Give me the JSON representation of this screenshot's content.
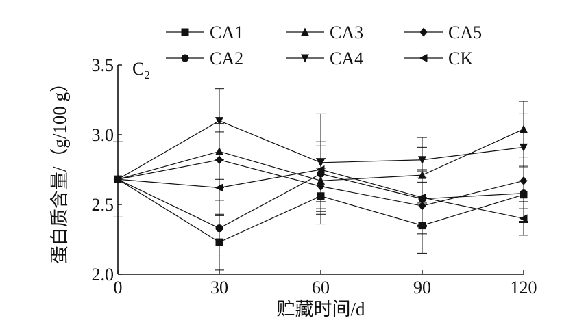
{
  "chart_data": {
    "type": "line",
    "panel_label": "C",
    "panel_label_sub": "2",
    "xlabel": "贮藏时间/d",
    "ylabel": "蛋白质含量/（g/100 g）",
    "x": [
      0,
      30,
      60,
      90,
      120
    ],
    "x_ticks": [
      "0",
      "30",
      "60",
      "90",
      "120"
    ],
    "y_ticks": [
      "2.0",
      "2.5",
      "3.0",
      "3.5"
    ],
    "xlim": [
      0,
      120
    ],
    "ylim": [
      2.0,
      3.5
    ],
    "grid": false,
    "legend_position": "top",
    "series": [
      {
        "name": "CA1",
        "marker": "square",
        "values": [
          2.68,
          2.23,
          2.56,
          2.35,
          2.57
        ],
        "errors": [
          0.27,
          0.2,
          0.2,
          0.2,
          0.2
        ]
      },
      {
        "name": "CA2",
        "marker": "circle",
        "values": [
          2.68,
          2.33,
          2.72,
          2.54,
          2.58
        ],
        "errors": [
          0,
          0.2,
          0.2,
          0.2,
          0.2
        ]
      },
      {
        "name": "CA3",
        "marker": "triangle-up",
        "values": [
          2.68,
          2.88,
          2.67,
          2.71,
          3.04
        ],
        "errors": [
          0,
          0.2,
          0.2,
          0.2,
          0.2
        ]
      },
      {
        "name": "CA4",
        "marker": "triangle-down",
        "values": [
          2.68,
          3.1,
          2.8,
          2.82,
          2.91
        ],
        "errors": [
          0,
          0.23,
          0.35,
          0.16,
          0.24
        ]
      },
      {
        "name": "CA5",
        "marker": "diamond",
        "values": [
          2.68,
          2.82,
          2.63,
          2.49,
          2.67
        ],
        "errors": [
          0,
          0.2,
          0.2,
          0.2,
          0.2
        ]
      },
      {
        "name": "CK",
        "marker": "triangle-left",
        "values": [
          2.68,
          2.62,
          2.75,
          2.55,
          2.4
        ],
        "errors": [
          0,
          0.2,
          0.2,
          0.2,
          0.12
        ]
      }
    ]
  }
}
